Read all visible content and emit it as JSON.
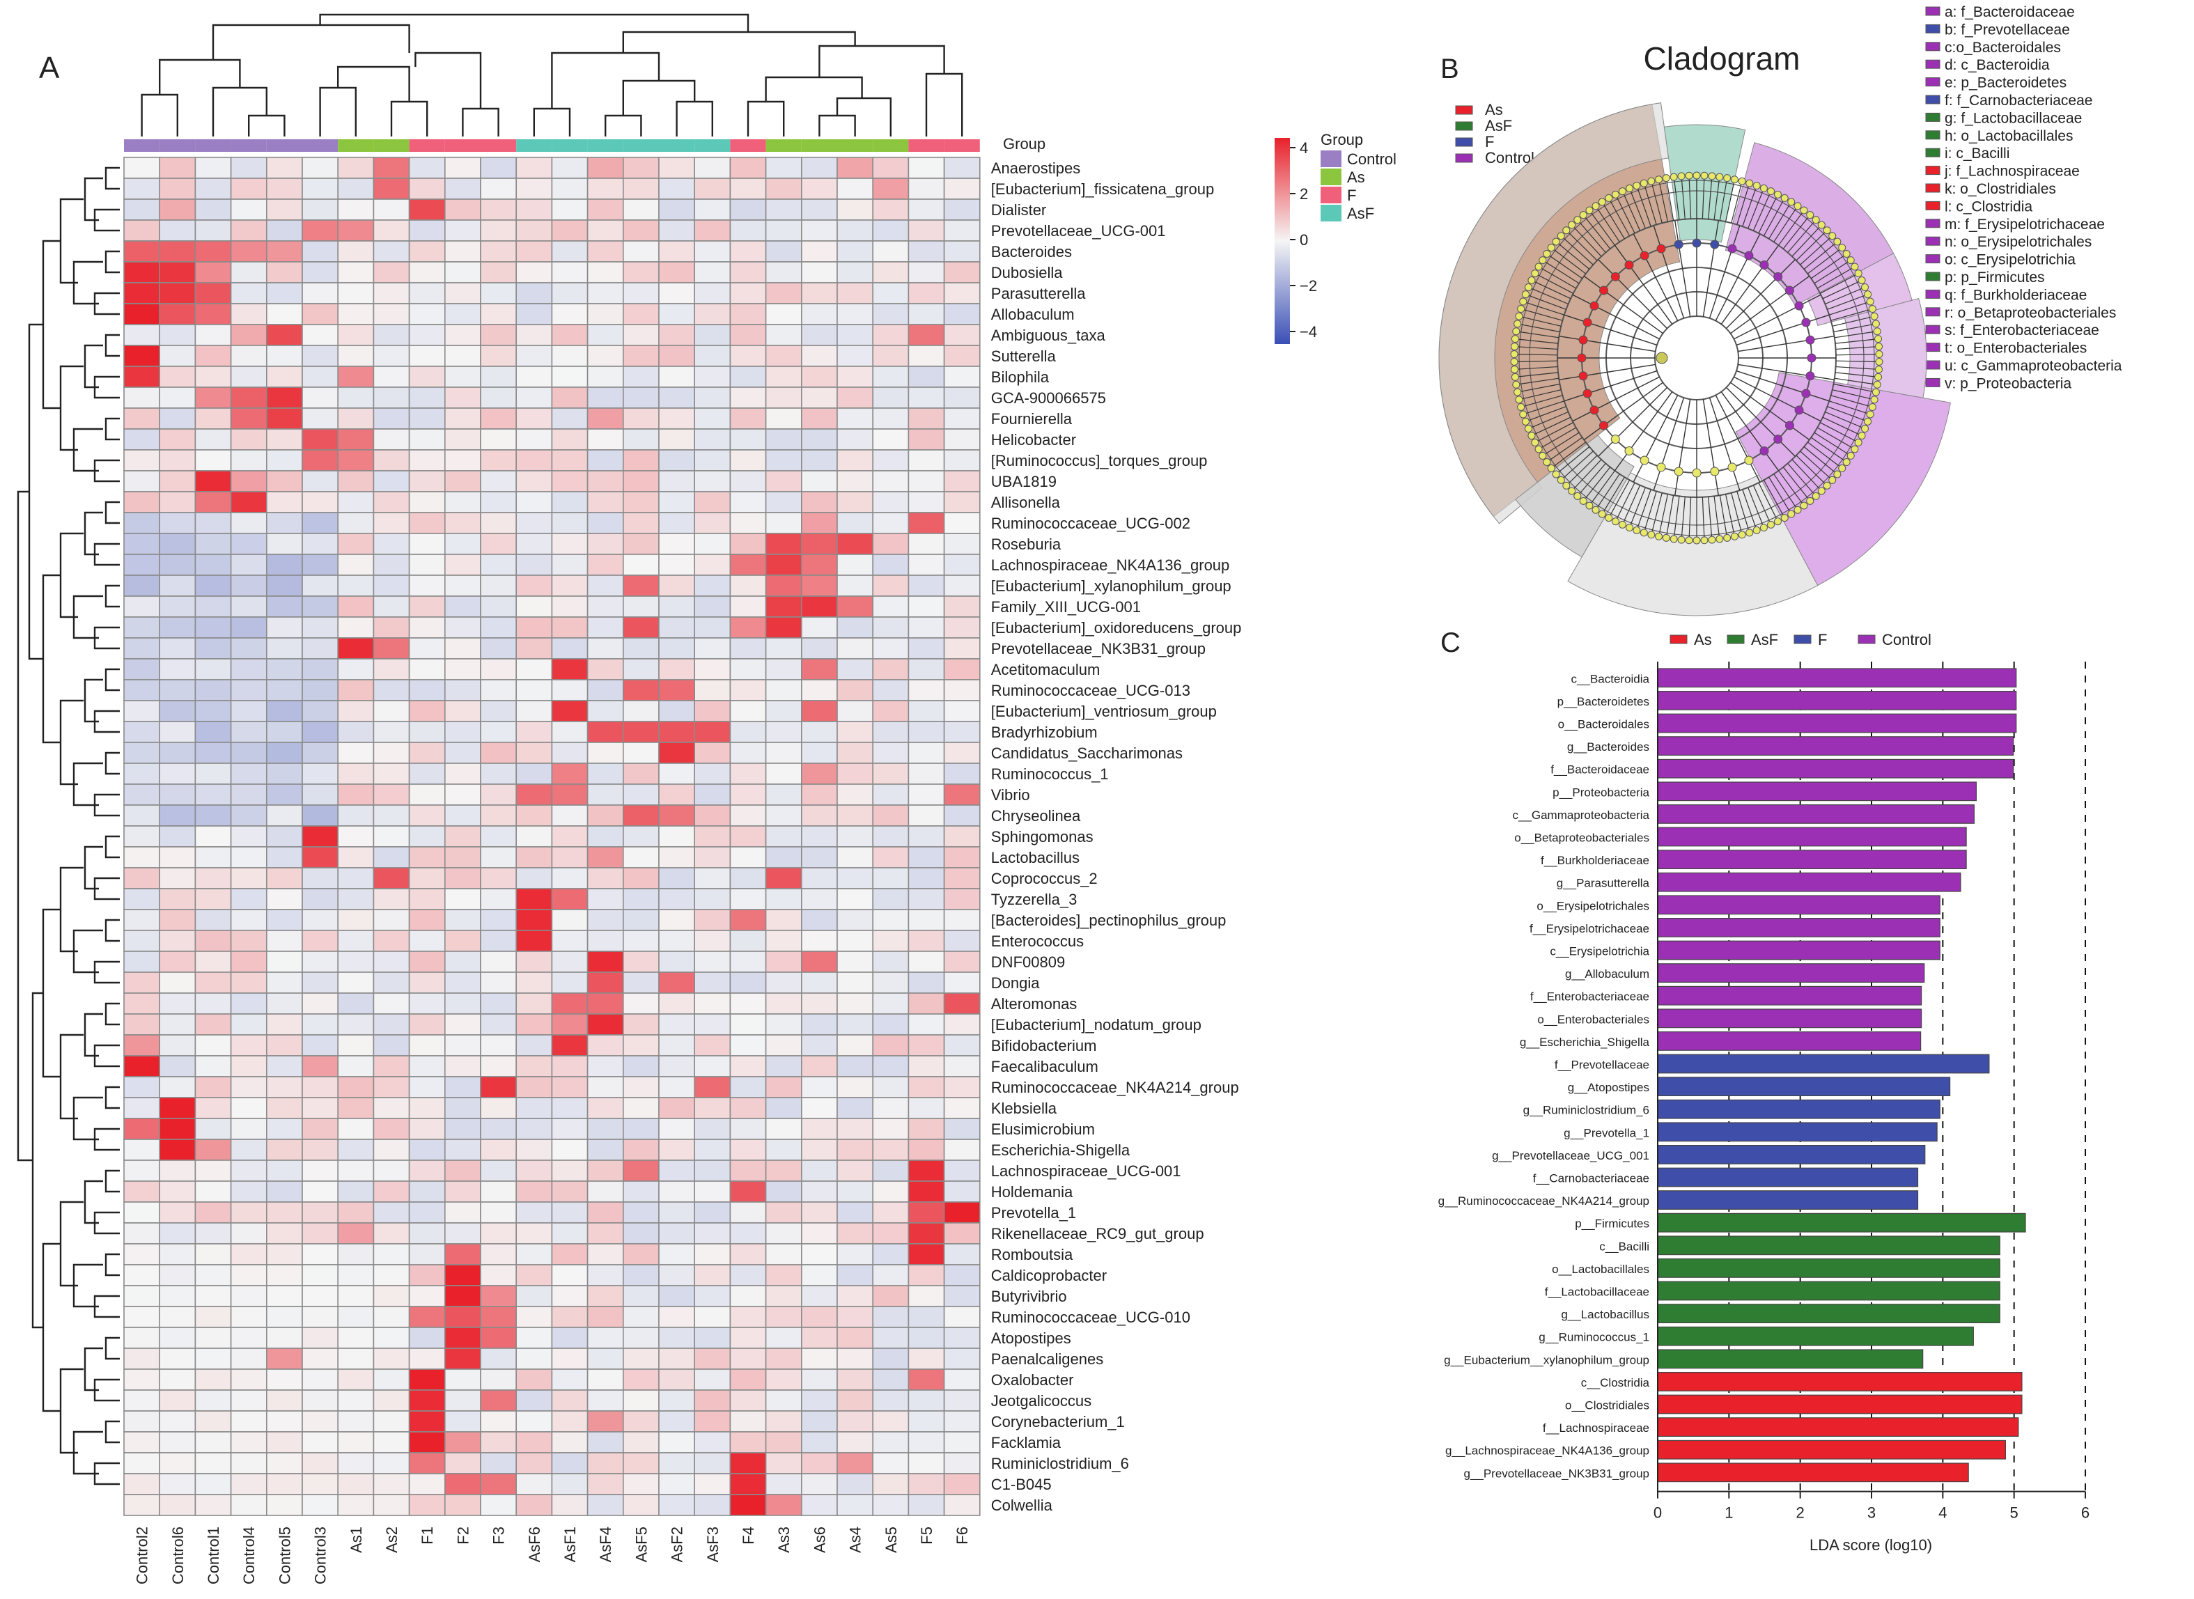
{
  "panels": {
    "a": "A",
    "b": "B",
    "c": "C"
  },
  "heatmap": {
    "samples": [
      "Control2",
      "Control6",
      "Control1",
      "Control4",
      "Control5",
      "Control3",
      "As1",
      "As2",
      "F1",
      "F2",
      "F3",
      "AsF6",
      "AsF1",
      "AsF4",
      "AsF5",
      "AsF2",
      "AsF3",
      "F4",
      "As3",
      "As6",
      "As4",
      "As5",
      "F5",
      "F6"
    ],
    "sample_groups": [
      "Control",
      "Control",
      "Control",
      "Control",
      "Control",
      "Control",
      "As",
      "As",
      "F",
      "F",
      "F",
      "AsF",
      "AsF",
      "AsF",
      "AsF",
      "AsF",
      "AsF",
      "F",
      "As",
      "As",
      "As",
      "As",
      "F",
      "F"
    ],
    "taxa": [
      "Anaerostipes",
      "[Eubacterium]_fissicatena_group",
      "Dialister",
      "Prevotellaceae_UCG-001",
      "Bacteroides",
      "Dubosiella",
      "Parasutterella",
      "Allobaculum",
      "Ambiguous_taxa",
      "Sutterella",
      "Bilophila",
      "GCA-900066575",
      "Fournierella",
      "Helicobacter",
      "[Ruminococcus]_torques_group",
      "UBA1819",
      "Allisonella",
      "Ruminococcaceae_UCG-002",
      "Roseburia",
      "Lachnospiraceae_NK4A136_group",
      "[Eubacterium]_xylanophilum_group",
      "Family_XIII_UCG-001",
      "[Eubacterium]_oxidoreducens_group",
      "Prevotellaceae_NK3B31_group",
      "Acetitomaculum",
      "Ruminococcaceae_UCG-013",
      "[Eubacterium]_ventriosum_group",
      "Bradyrhizobium",
      "Candidatus_Saccharimonas",
      "Ruminococcus_1",
      "Vibrio",
      "Chryseolinea",
      "Sphingomonas",
      "Lactobacillus",
      "Coprococcus_2",
      "Tyzzerella_3",
      "[Bacteroides]_pectinophilus_group",
      "Enterococcus",
      "DNF00809",
      "Dongia",
      "Alteromonas",
      "[Eubacterium]_nodatum_group",
      "Bifidobacterium",
      "Faecalibaculum",
      "Ruminococcaceae_NK4A214_group",
      "Klebsiella",
      "Elusimicrobium",
      "Escherichia-Shigella",
      "Lachnospiraceae_UCG-001",
      "Holdemania",
      "Prevotella_1",
      "Rikenellaceae_RC9_gut_group",
      "Romboutsia",
      "Caldicoprobacter",
      "Butyrivibrio",
      "Ruminococcaceae_UCG-010",
      "Atopostipes",
      "Paenalcaligenes",
      "Oxalobacter",
      "Jeotgalicoccus",
      "Corynebacterium_1",
      "Facklamia",
      "Ruminiclostridium_6",
      "C1-B045",
      "Colwellia"
    ],
    "group_row_label": "Group",
    "legend": {
      "title": "Group",
      "items": [
        {
          "label": "Control",
          "color": "#9b7fc4"
        },
        {
          "label": "As",
          "color": "#8cc63f"
        },
        {
          "label": "F",
          "color": "#f0607a"
        },
        {
          "label": "AsF",
          "color": "#5cc8b8"
        }
      ],
      "scale_ticks": [
        "4",
        "2",
        "0",
        "-2",
        "-4"
      ],
      "scale_min": -4,
      "scale_max": 4
    },
    "colors": {
      "high": "#e8212b",
      "mid": "#f5f5f5",
      "low": "#3a4fb5",
      "grid": "#8a8a8a"
    }
  },
  "cladogram": {
    "title": "Cladogram",
    "legend": [
      {
        "label": "As",
        "color": "#e8212b"
      },
      {
        "label": "AsF",
        "color": "#2e7d32"
      },
      {
        "label": "F",
        "color": "#3f4ea8"
      },
      {
        "label": "Control",
        "color": "#9b30b5"
      }
    ],
    "taxa_key": [
      {
        "label": "a: f_Bacteroidaceae",
        "group": "Control"
      },
      {
        "label": "b: f_Prevotellaceae",
        "group": "F"
      },
      {
        "label": "c:o_Bacteroidales",
        "group": "Control"
      },
      {
        "label": "d: c_Bacteroidia",
        "group": "Control"
      },
      {
        "label": "e: p_Bacteroidetes",
        "group": "Control"
      },
      {
        "label": "f: f_Carnobacteriaceae",
        "group": "F"
      },
      {
        "label": "g: f_Lactobacillaceae",
        "group": "AsF"
      },
      {
        "label": "h: o_Lactobacillales",
        "group": "AsF"
      },
      {
        "label": "i: c_Bacilli",
        "group": "AsF"
      },
      {
        "label": "j: f_Lachnospiraceae",
        "group": "As"
      },
      {
        "label": "k: o_Clostridiales",
        "group": "As"
      },
      {
        "label": "l: c_Clostridia",
        "group": "As"
      },
      {
        "label": "m: f_Erysipelotrichaceae",
        "group": "Control"
      },
      {
        "label": "n: o_Erysipelotrichales",
        "group": "Control"
      },
      {
        "label": "o: c_Erysipelotrichia",
        "group": "Control"
      },
      {
        "label": "p: p_Firmicutes",
        "group": "AsF"
      },
      {
        "label": "q: f_Burkholderiaceae",
        "group": "Control"
      },
      {
        "label": "r: o_Betaproteobacteriales",
        "group": "Control"
      },
      {
        "label": "s: f_Enterobacteriaceae",
        "group": "Control"
      },
      {
        "label": "t: o_Enterobacteriales",
        "group": "Control"
      },
      {
        "label": "u: c_Gammaproteobacteria",
        "group": "Control"
      },
      {
        "label": "v: p_Proteobacteria",
        "group": "Control"
      }
    ]
  },
  "chart_data": {
    "type": "bar",
    "orientation": "horizontal",
    "xlabel": "LDA score (log10)",
    "xlim": [
      0,
      6
    ],
    "xticks": [
      "0",
      "1",
      "2",
      "3",
      "4",
      "5",
      "6"
    ],
    "legend": [
      {
        "label": "As",
        "color": "#e8212b"
      },
      {
        "label": "AsF",
        "color": "#2e7d32"
      },
      {
        "label": "F",
        "color": "#3f4ea8"
      },
      {
        "label": "Control",
        "color": "#9b30b5"
      }
    ],
    "legend_position": "top",
    "bars": [
      {
        "label": "c__Bacteroidia",
        "value": 5.03,
        "group": "Control"
      },
      {
        "label": "p__Bacteroidetes",
        "value": 5.03,
        "group": "Control"
      },
      {
        "label": "o__Bacteroidales",
        "value": 5.03,
        "group": "Control"
      },
      {
        "label": "g__Bacteroides",
        "value": 4.99,
        "group": "Control"
      },
      {
        "label": "f__Bacteroidaceae",
        "value": 4.99,
        "group": "Control"
      },
      {
        "label": "p__Proteobacteria",
        "value": 4.47,
        "group": "Control"
      },
      {
        "label": "c__Gammaproteobacteria",
        "value": 4.44,
        "group": "Control"
      },
      {
        "label": "o__Betaproteobacteriales",
        "value": 4.33,
        "group": "Control"
      },
      {
        "label": "f__Burkholderiaceae",
        "value": 4.33,
        "group": "Control"
      },
      {
        "label": "g__Parasutterella",
        "value": 4.25,
        "group": "Control"
      },
      {
        "label": "o__Erysipelotrichales",
        "value": 3.96,
        "group": "Control"
      },
      {
        "label": "f__Erysipelotrichaceae",
        "value": 3.96,
        "group": "Control"
      },
      {
        "label": "c__Erysipelotrichia",
        "value": 3.96,
        "group": "Control"
      },
      {
        "label": "g__Allobaculum",
        "value": 3.74,
        "group": "Control"
      },
      {
        "label": "f__Enterobacteriaceae",
        "value": 3.7,
        "group": "Control"
      },
      {
        "label": "o__Enterobacteriales",
        "value": 3.7,
        "group": "Control"
      },
      {
        "label": "g__Escherichia_Shigella",
        "value": 3.69,
        "group": "Control"
      },
      {
        "label": "f__Prevotellaceae",
        "value": 4.65,
        "group": "F"
      },
      {
        "label": "g__Atopostipes",
        "value": 4.1,
        "group": "F"
      },
      {
        "label": "g__Ruminiclostridium_6",
        "value": 3.96,
        "group": "F"
      },
      {
        "label": "g__Prevotella_1",
        "value": 3.92,
        "group": "F"
      },
      {
        "label": "g__Prevotellaceae_UCG_001",
        "value": 3.75,
        "group": "F"
      },
      {
        "label": "f__Carnobacteriaceae",
        "value": 3.65,
        "group": "F"
      },
      {
        "label": "g__Ruminococcaceae_NK4A214_group",
        "value": 3.65,
        "group": "F"
      },
      {
        "label": "p__Firmicutes",
        "value": 5.16,
        "group": "AsF"
      },
      {
        "label": "c__Bacilli",
        "value": 4.8,
        "group": "AsF"
      },
      {
        "label": "o__Lactobacillales",
        "value": 4.8,
        "group": "AsF"
      },
      {
        "label": "f__Lactobacillaceae",
        "value": 4.8,
        "group": "AsF"
      },
      {
        "label": "g__Lactobacillus",
        "value": 4.8,
        "group": "AsF"
      },
      {
        "label": "g__Ruminococcus_1",
        "value": 4.43,
        "group": "AsF"
      },
      {
        "label": "g__Eubacterium__xylanophilum_group",
        "value": 3.72,
        "group": "AsF"
      },
      {
        "label": "c__Clostridia",
        "value": 5.11,
        "group": "As"
      },
      {
        "label": "o__Clostridiales",
        "value": 5.11,
        "group": "As"
      },
      {
        "label": "f__Lachnospiraceae",
        "value": 5.06,
        "group": "As"
      },
      {
        "label": "g__Lachnospiraceae_NK4A136_group",
        "value": 4.88,
        "group": "As"
      },
      {
        "label": "g__Prevotellaceae_NK3B31_group",
        "value": 4.36,
        "group": "As"
      }
    ]
  }
}
